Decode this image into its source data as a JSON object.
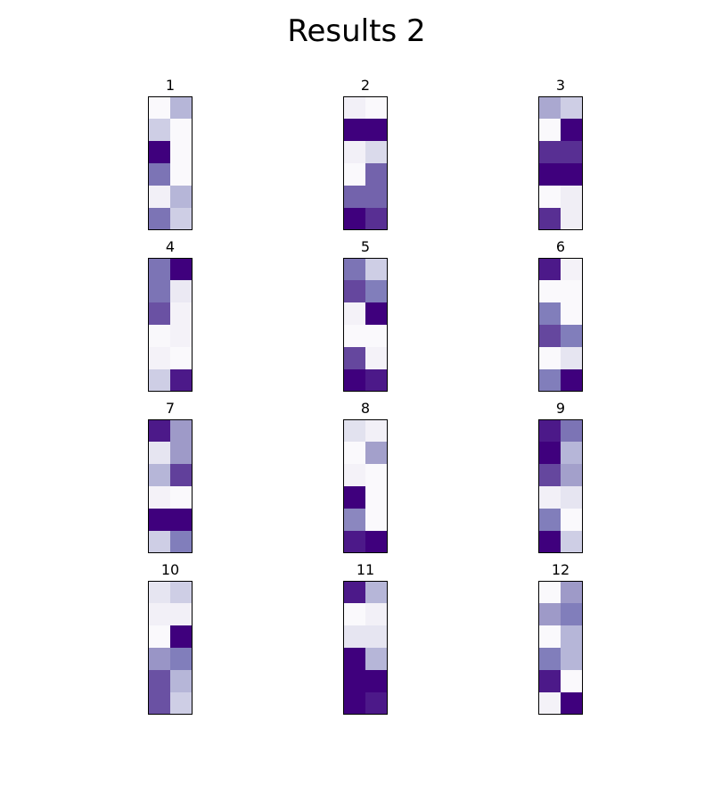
{
  "chart_data": {
    "type": "heatmap",
    "title": "Results 2",
    "colormap": "Purples",
    "vmin": 0,
    "vmax": 1,
    "grid": false,
    "rows_per_panel": 6,
    "cols_per_panel": 2,
    "panels": [
      {
        "title": "1",
        "values": [
          [
            0.02,
            0.4
          ],
          [
            0.3,
            0.02
          ],
          [
            1.0,
            0.02
          ],
          [
            0.65,
            0.02
          ],
          [
            0.1,
            0.4
          ],
          [
            0.65,
            0.3
          ]
        ]
      },
      {
        "title": "2",
        "values": [
          [
            0.1,
            0.02
          ],
          [
            1.0,
            1.0
          ],
          [
            0.1,
            0.25
          ],
          [
            0.02,
            0.7
          ],
          [
            0.7,
            0.7
          ],
          [
            1.0,
            0.85
          ]
        ]
      },
      {
        "title": "3",
        "values": [
          [
            0.45,
            0.3
          ],
          [
            0.02,
            1.0
          ],
          [
            0.85,
            0.85
          ],
          [
            1.0,
            1.0
          ],
          [
            0.02,
            0.12
          ],
          [
            0.85,
            0.12
          ]
        ]
      },
      {
        "title": "4",
        "values": [
          [
            0.65,
            1.0
          ],
          [
            0.65,
            0.15
          ],
          [
            0.75,
            0.08
          ],
          [
            0.03,
            0.08
          ],
          [
            0.08,
            0.02
          ],
          [
            0.3,
            0.92
          ]
        ]
      },
      {
        "title": "5",
        "values": [
          [
            0.65,
            0.3
          ],
          [
            0.78,
            0.62
          ],
          [
            0.08,
            1.0
          ],
          [
            0.02,
            0.02
          ],
          [
            0.78,
            0.08
          ],
          [
            1.0,
            0.92
          ]
        ]
      },
      {
        "title": "6",
        "values": [
          [
            0.92,
            0.08
          ],
          [
            0.02,
            0.02
          ],
          [
            0.62,
            0.02
          ],
          [
            0.78,
            0.62
          ],
          [
            0.02,
            0.18
          ],
          [
            0.62,
            1.0
          ]
        ]
      },
      {
        "title": "7",
        "values": [
          [
            0.92,
            0.5
          ],
          [
            0.18,
            0.5
          ],
          [
            0.4,
            0.8
          ],
          [
            0.08,
            0.02
          ],
          [
            1.0,
            1.0
          ],
          [
            0.3,
            0.62
          ]
        ]
      },
      {
        "title": "8",
        "values": [
          [
            0.2,
            0.1
          ],
          [
            0.02,
            0.48
          ],
          [
            0.08,
            0.02
          ],
          [
            1.0,
            0.02
          ],
          [
            0.58,
            0.02
          ],
          [
            0.92,
            1.0
          ]
        ]
      },
      {
        "title": "9",
        "values": [
          [
            0.92,
            0.65
          ],
          [
            1.0,
            0.4
          ],
          [
            0.78,
            0.48
          ],
          [
            0.1,
            0.18
          ],
          [
            0.62,
            0.02
          ],
          [
            1.0,
            0.3
          ]
        ]
      },
      {
        "title": "10",
        "values": [
          [
            0.18,
            0.3
          ],
          [
            0.1,
            0.1
          ],
          [
            0.02,
            1.0
          ],
          [
            0.52,
            0.62
          ],
          [
            0.75,
            0.4
          ],
          [
            0.75,
            0.3
          ]
        ]
      },
      {
        "title": "11",
        "values": [
          [
            0.92,
            0.4
          ],
          [
            0.02,
            0.1
          ],
          [
            0.18,
            0.18
          ],
          [
            1.0,
            0.4
          ],
          [
            1.0,
            1.0
          ],
          [
            1.0,
            0.92
          ]
        ]
      },
      {
        "title": "12",
        "values": [
          [
            0.02,
            0.5
          ],
          [
            0.5,
            0.62
          ],
          [
            0.02,
            0.4
          ],
          [
            0.62,
            0.4
          ],
          [
            0.92,
            0.02
          ],
          [
            0.08,
            1.0
          ]
        ]
      }
    ]
  }
}
